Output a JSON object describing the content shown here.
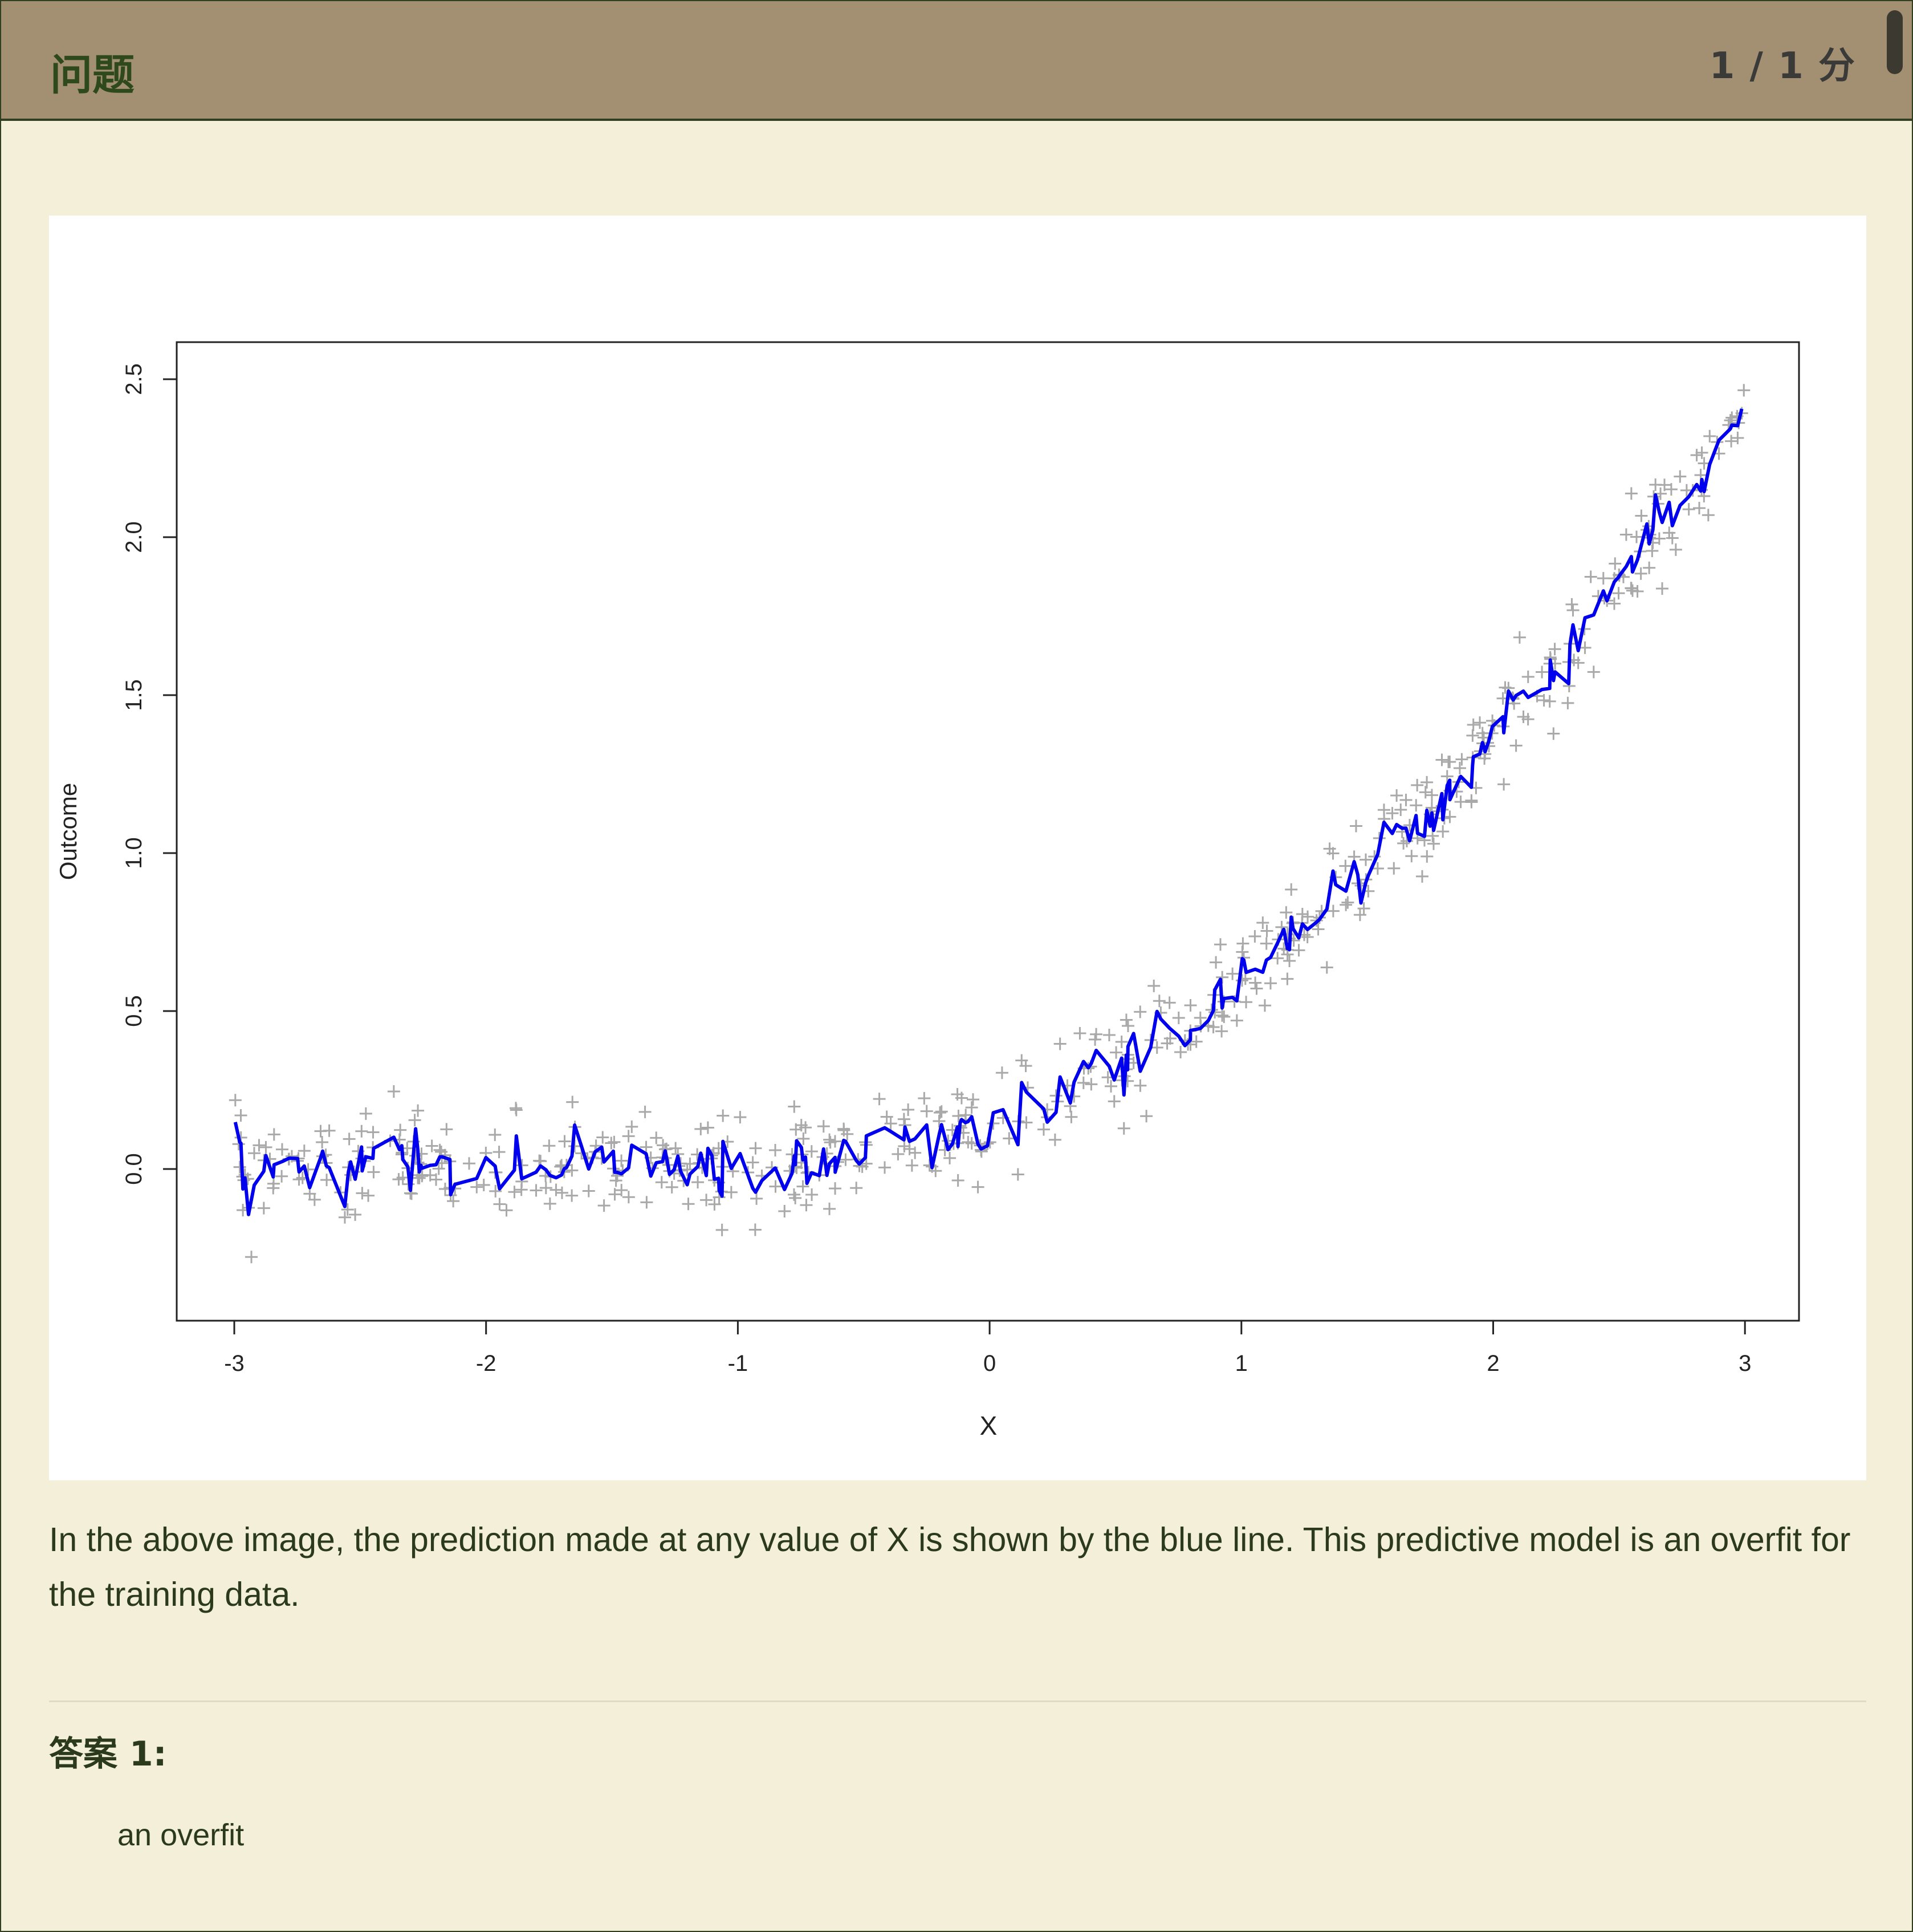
{
  "header": {
    "title": "问题",
    "score": "1 / 1 分"
  },
  "question": {
    "text": "In the above image, the prediction made at any value of X is shown by the blue line.  This predictive model is an overfit for the training data."
  },
  "answer": {
    "label": "答案 1:",
    "value": "an overfit"
  },
  "colors": {
    "header_bg": "#a38f71",
    "page_bg": "#f4efd9",
    "prediction_line": "#0000ee",
    "training_points": "#a9a9a9"
  },
  "chart_data": {
    "type": "scatter",
    "title": "",
    "xlabel": "X",
    "ylabel": "Outcome",
    "xlim": [
      -3.1,
      3.1
    ],
    "ylim": [
      -0.48,
      2.62
    ],
    "xticks": [
      -3,
      -2,
      -1,
      0,
      1,
      2,
      3
    ],
    "yticks": [
      0.0,
      0.5,
      1.0,
      1.5,
      2.0,
      2.5
    ],
    "xtick_labels": [
      "-3",
      "-2",
      "-1",
      "0",
      "1",
      "2",
      "3"
    ],
    "ytick_labels": [
      "0.0",
      "0.5",
      "1.0",
      "1.5",
      "2.0",
      "2.5"
    ],
    "grid": false,
    "series": [
      {
        "kind": "points",
        "marker": "+",
        "color": "#a9a9a9",
        "underlying": "y ≈ 0 for x < -1, y ≈ (x+1)^2 / 6.6 for x ≥ -1",
        "n_points": 600,
        "noise_sd": 0.08,
        "x_range": [
          -3,
          3
        ]
      },
      {
        "kind": "line",
        "color": "#0000ee",
        "underlying": "interpolates the noisy training data (overfit)",
        "x_range": [
          -3,
          3
        ]
      }
    ]
  }
}
